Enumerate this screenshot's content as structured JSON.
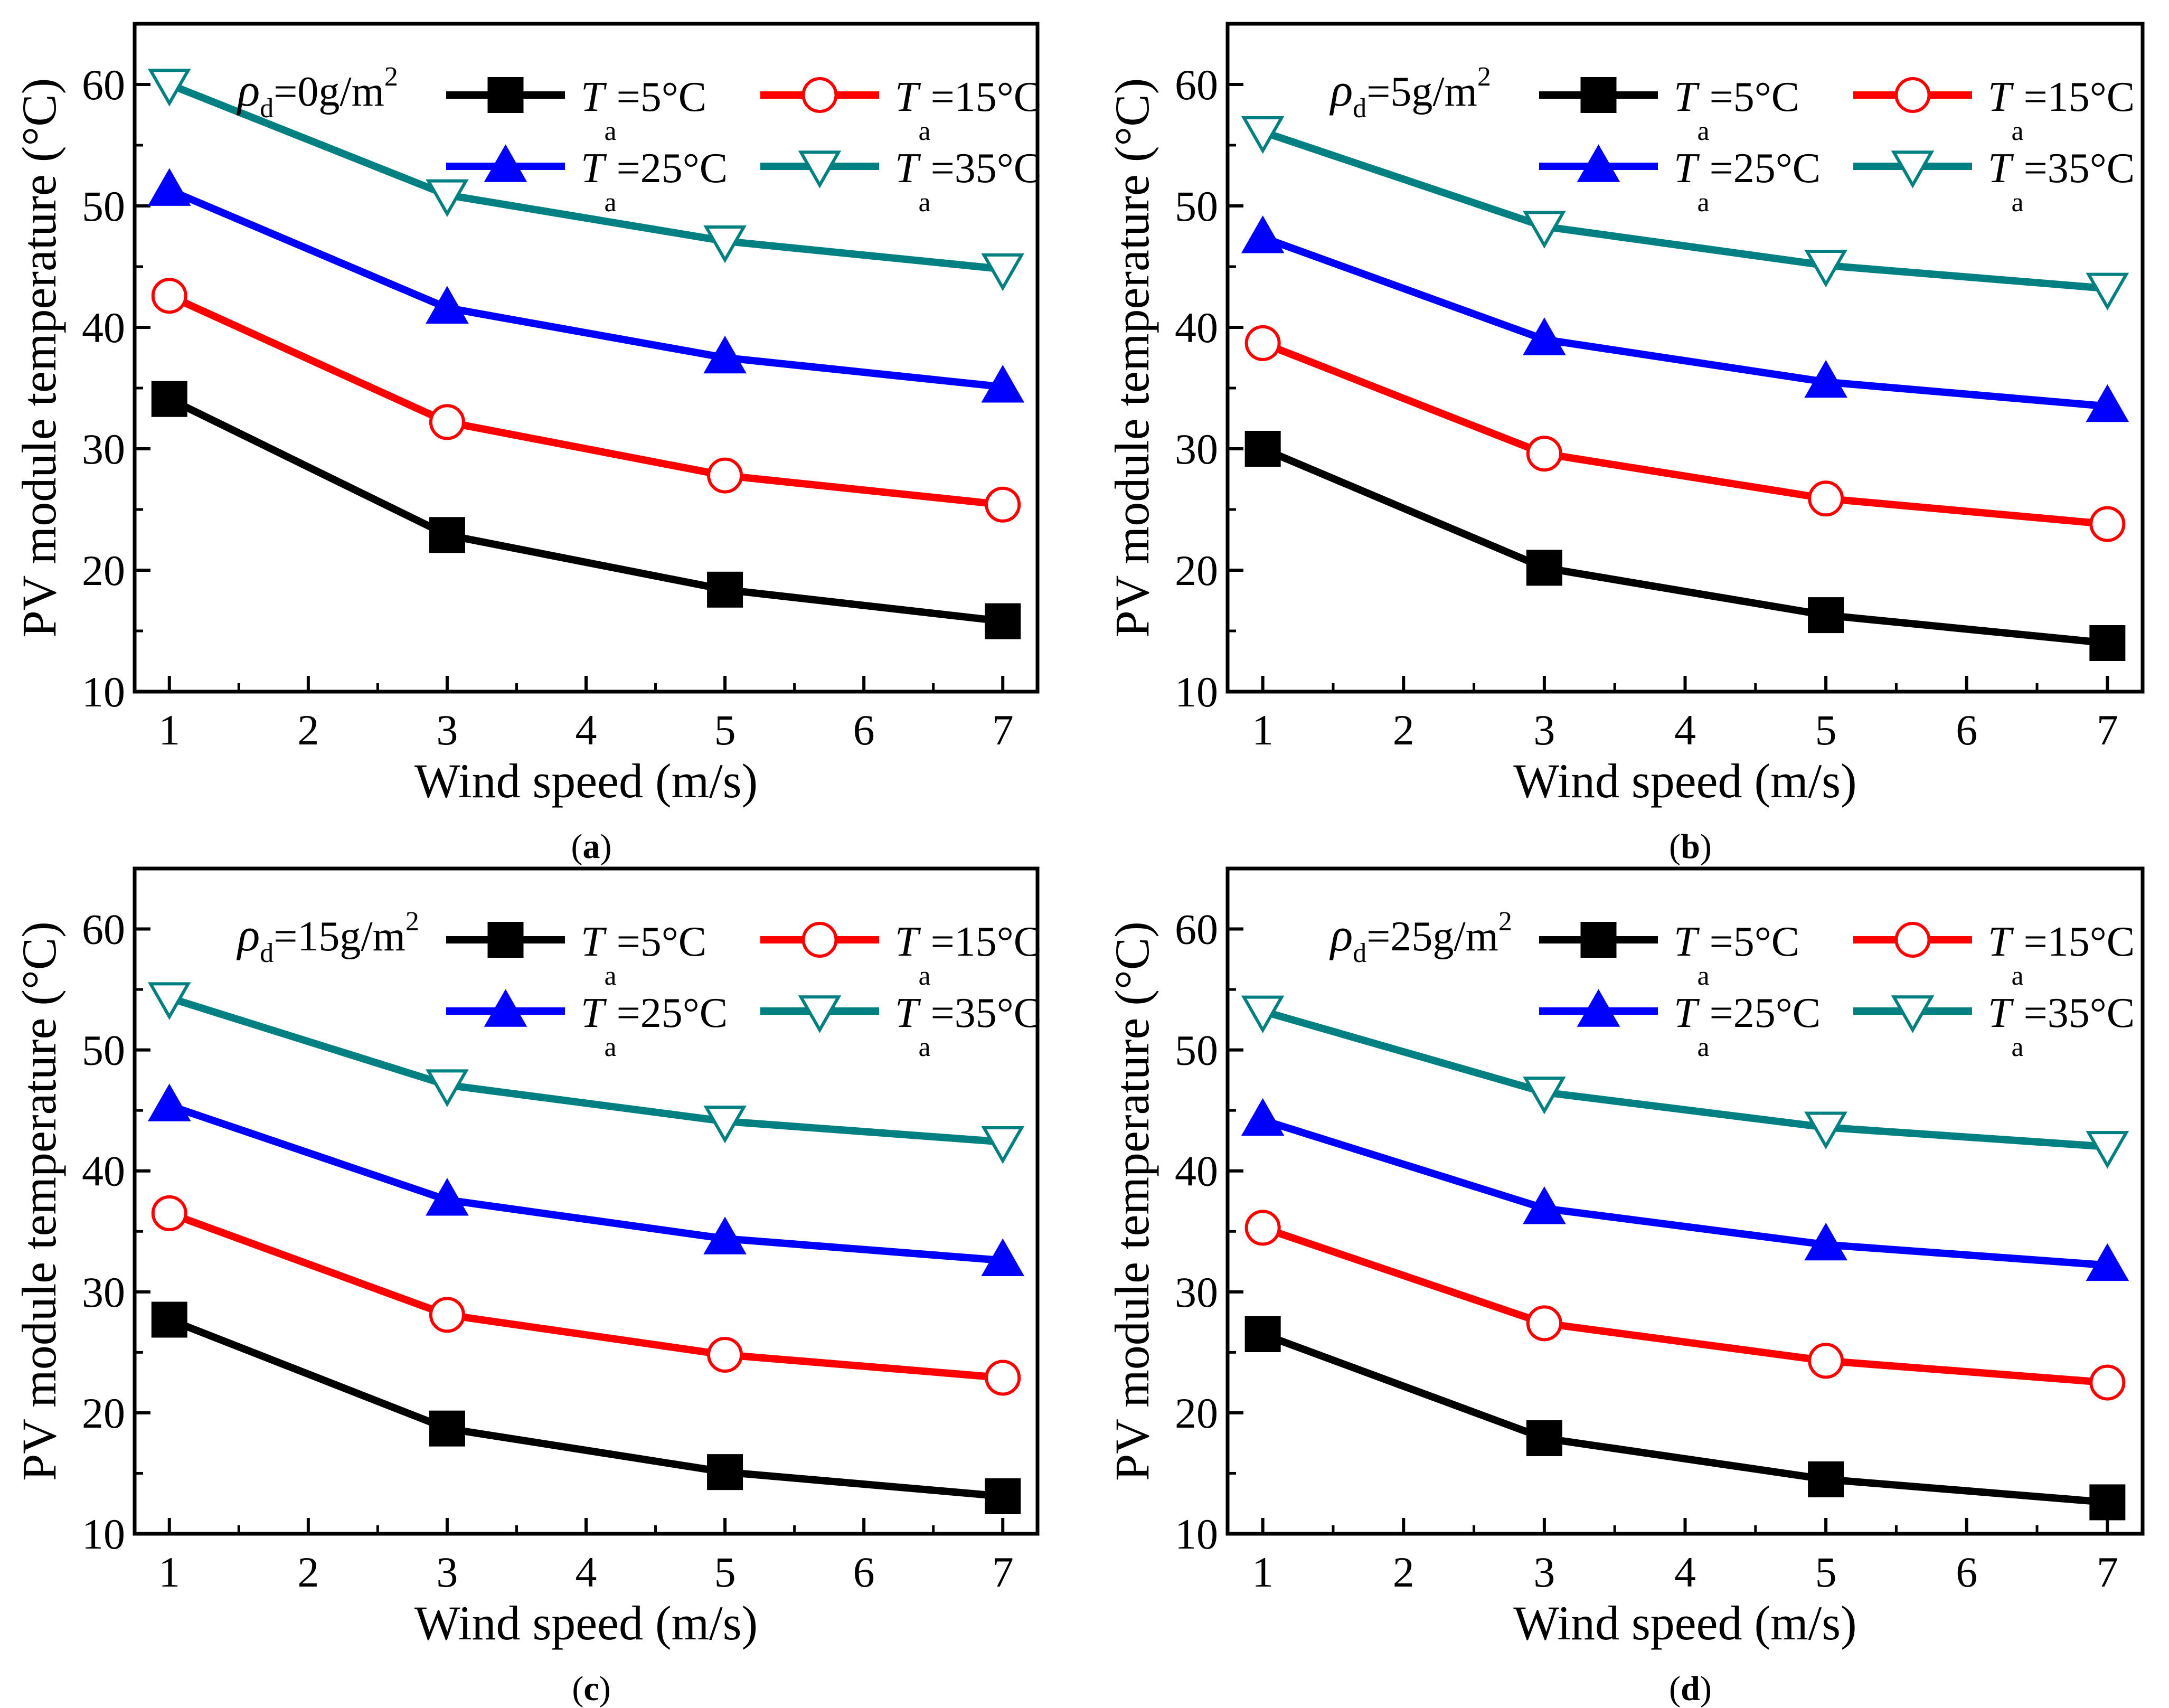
{
  "chart_data": [
    {
      "type": "line",
      "panel_label": "(a)",
      "panel_letter": "a",
      "annotation": {
        "symbol": "ρ",
        "subscript": "d",
        "text": "=0g/m",
        "superscript": "2"
      },
      "xlabel": "Wind speed (m/s)",
      "ylabel": "PV module temperature (°C)",
      "xlim": [
        0.75,
        7.25
      ],
      "ylim": [
        10,
        65
      ],
      "xticks": [
        "1",
        "2",
        "3",
        "4",
        "5",
        "6",
        "7"
      ],
      "yticks": [
        "10",
        "20",
        "30",
        "40",
        "50",
        "60"
      ],
      "x": [
        1,
        3,
        5,
        7
      ],
      "series": [
        {
          "name_main": "T",
          "name_sub": "a",
          "name_rest": "=5°C",
          "color": "#000000",
          "marker": "square",
          "values": [
            34.1,
            22.9,
            18.4,
            15.8
          ]
        },
        {
          "name_main": "T",
          "name_sub": "a",
          "name_rest": "=15°C",
          "color": "#ff0000",
          "marker": "circle-open",
          "values": [
            42.6,
            32.2,
            27.8,
            25.4
          ]
        },
        {
          "name_main": "T",
          "name_sub": "a",
          "name_rest": "=25°C",
          "color": "#0000ff",
          "marker": "triangle-up",
          "values": [
            51.3,
            41.6,
            37.5,
            35.1
          ]
        },
        {
          "name_main": "T",
          "name_sub": "a",
          "name_rest": "=35°C",
          "color": "#008080",
          "marker": "triangle-down-open",
          "values": [
            60.0,
            50.9,
            47.1,
            44.8
          ]
        }
      ]
    },
    {
      "type": "line",
      "panel_label": "(b)",
      "panel_letter": "b",
      "annotation": {
        "symbol": "ρ",
        "subscript": "d",
        "text": "=5g/m",
        "superscript": "2"
      },
      "xlabel": "Wind speed (m/s)",
      "ylabel": "PV module temperature (°C)",
      "xlim": [
        0.75,
        7.25
      ],
      "ylim": [
        10,
        65
      ],
      "xticks": [
        "1",
        "2",
        "3",
        "4",
        "5",
        "6",
        "7"
      ],
      "yticks": [
        "10",
        "20",
        "30",
        "40",
        "50",
        "60"
      ],
      "x": [
        1,
        3,
        5,
        7
      ],
      "series": [
        {
          "name_main": "T",
          "name_sub": "a",
          "name_rest": "=5°C",
          "color": "#000000",
          "marker": "square",
          "values": [
            30.0,
            20.2,
            16.3,
            14.0
          ]
        },
        {
          "name_main": "T",
          "name_sub": "a",
          "name_rest": "=15°C",
          "color": "#ff0000",
          "marker": "circle-open",
          "values": [
            38.7,
            29.6,
            25.9,
            23.8
          ]
        },
        {
          "name_main": "T",
          "name_sub": "a",
          "name_rest": "=25°C",
          "color": "#0000ff",
          "marker": "triangle-up",
          "values": [
            47.4,
            39.0,
            35.5,
            33.5
          ]
        },
        {
          "name_main": "T",
          "name_sub": "a",
          "name_rest": "=35°C",
          "color": "#008080",
          "marker": "triangle-down-open",
          "values": [
            56.1,
            48.3,
            45.1,
            43.2
          ]
        }
      ]
    },
    {
      "type": "line",
      "panel_label": "(c)",
      "panel_letter": "c",
      "annotation": {
        "symbol": "ρ",
        "subscript": "d",
        "text": "=15g/m",
        "superscript": "2"
      },
      "xlabel": "Wind speed (m/s)",
      "ylabel": "PV module temperature (°C)",
      "xlim": [
        0.75,
        7.25
      ],
      "ylim": [
        10,
        65
      ],
      "xticks": [
        "1",
        "2",
        "3",
        "4",
        "5",
        "6",
        "7"
      ],
      "yticks": [
        "10",
        "20",
        "30",
        "40",
        "50",
        "60"
      ],
      "x": [
        1,
        3,
        5,
        7
      ],
      "series": [
        {
          "name_main": "T",
          "name_sub": "a",
          "name_rest": "=5°C",
          "color": "#000000",
          "marker": "square",
          "values": [
            27.7,
            18.7,
            15.1,
            13.1
          ]
        },
        {
          "name_main": "T",
          "name_sub": "a",
          "name_rest": "=15°C",
          "color": "#ff0000",
          "marker": "circle-open",
          "values": [
            36.5,
            28.1,
            24.8,
            22.9
          ]
        },
        {
          "name_main": "T",
          "name_sub": "a",
          "name_rest": "=25°C",
          "color": "#0000ff",
          "marker": "triangle-up",
          "values": [
            45.4,
            37.6,
            34.4,
            32.6
          ]
        },
        {
          "name_main": "T",
          "name_sub": "a",
          "name_rest": "=35°C",
          "color": "#008080",
          "marker": "triangle-down-open",
          "values": [
            54.3,
            47.1,
            44.1,
            42.4
          ]
        }
      ]
    },
    {
      "type": "line",
      "panel_label": "(d)",
      "panel_letter": "d",
      "annotation": {
        "symbol": "ρ",
        "subscript": "d",
        "text": "=25g/m",
        "superscript": "2"
      },
      "xlabel": "Wind speed (m/s)",
      "ylabel": "PV module temperature (°C)",
      "xlim": [
        0.75,
        7.25
      ],
      "ylim": [
        10,
        65
      ],
      "xticks": [
        "1",
        "2",
        "3",
        "4",
        "5",
        "6",
        "7"
      ],
      "yticks": [
        "10",
        "20",
        "30",
        "40",
        "50",
        "60"
      ],
      "x": [
        1,
        3,
        5,
        7
      ],
      "series": [
        {
          "name_main": "T",
          "name_sub": "a",
          "name_rest": "=5°C",
          "color": "#000000",
          "marker": "square",
          "values": [
            26.5,
            17.9,
            14.5,
            12.6
          ]
        },
        {
          "name_main": "T",
          "name_sub": "a",
          "name_rest": "=15°C",
          "color": "#ff0000",
          "marker": "circle-open",
          "values": [
            35.3,
            27.4,
            24.3,
            22.5
          ]
        },
        {
          "name_main": "T",
          "name_sub": "a",
          "name_rest": "=25°C",
          "color": "#0000ff",
          "marker": "triangle-up",
          "values": [
            44.2,
            36.9,
            33.9,
            32.2
          ]
        },
        {
          "name_main": "T",
          "name_sub": "a",
          "name_rest": "=35°C",
          "color": "#008080",
          "marker": "triangle-down-open",
          "values": [
            53.2,
            46.5,
            43.6,
            42.0
          ]
        }
      ]
    }
  ]
}
